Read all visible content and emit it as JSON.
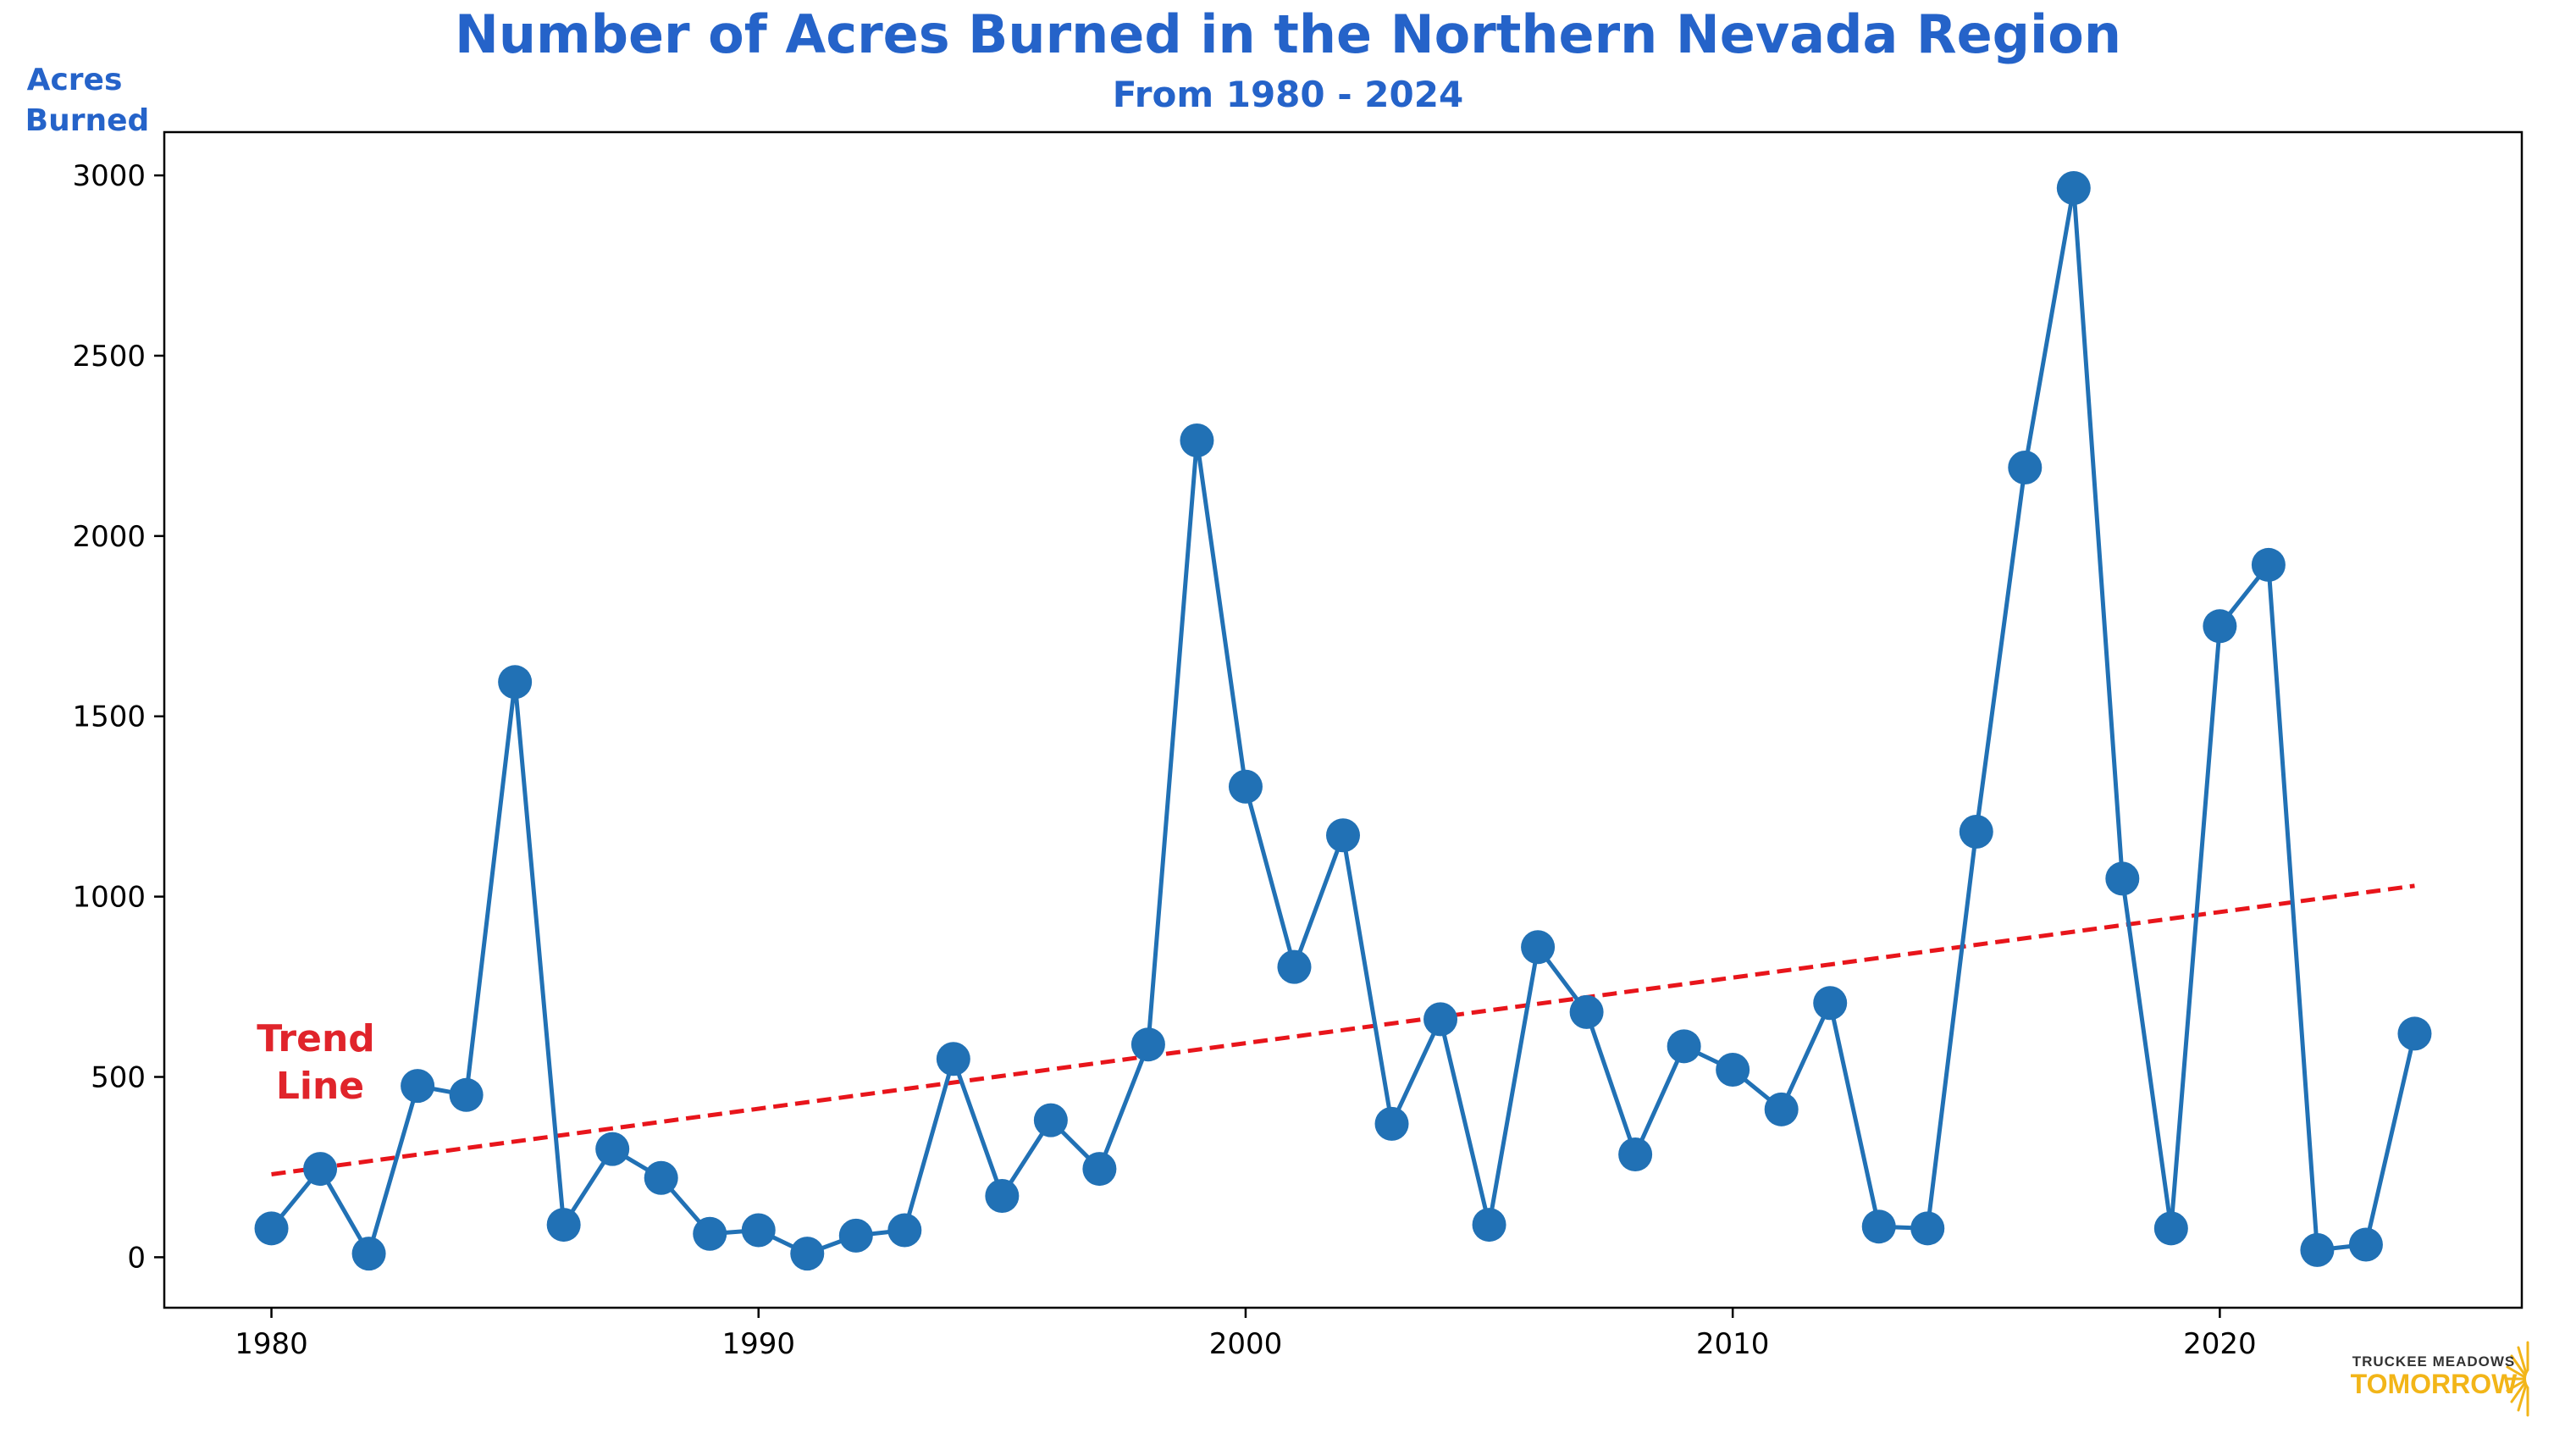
{
  "chart_data": {
    "type": "line",
    "title": "Number of Acres Burned in the Northern Nevada Region",
    "subtitle": "From 1980 - 2024",
    "ylabel_line1": "Acres",
    "ylabel_line2": "Burned",
    "xlabel": "",
    "xlim": [
      1977.8,
      2026.2
    ],
    "ylim": [
      -140,
      3120
    ],
    "xticks": [
      1980,
      1990,
      2000,
      2010,
      2020
    ],
    "yticks": [
      0,
      500,
      1000,
      1500,
      2000,
      2500,
      3000
    ],
    "grid": false,
    "x": [
      1980,
      1981,
      1982,
      1983,
      1984,
      1985,
      1986,
      1987,
      1988,
      1989,
      1990,
      1991,
      1992,
      1993,
      1994,
      1995,
      1996,
      1997,
      1998,
      1999,
      2000,
      2001,
      2002,
      2003,
      2004,
      2005,
      2006,
      2007,
      2008,
      2009,
      2010,
      2011,
      2012,
      2013,
      2014,
      2015,
      2016,
      2017,
      2018,
      2019,
      2020,
      2021,
      2022,
      2023,
      2024
    ],
    "series": [
      {
        "values": [
          80,
          245,
          10,
          475,
          450,
          1595,
          90,
          300,
          220,
          65,
          75,
          10,
          60,
          75,
          550,
          170,
          380,
          245,
          590,
          2265,
          1305,
          805,
          1170,
          370,
          660,
          90,
          860,
          680,
          285,
          585,
          520,
          410,
          705,
          85,
          80,
          1180,
          2190,
          2965,
          1050,
          80,
          1750,
          1920,
          20,
          35,
          620
        ],
        "color": "#2171b5"
      }
    ],
    "trend": {
      "x": [
        1980,
        2024
      ],
      "y": [
        230,
        1030
      ],
      "color": "#e8151b",
      "style": "dashed",
      "annotation_line1": "Trend",
      "annotation_line2": "Line",
      "annotation_color": "#e0242b"
    }
  },
  "logo": {
    "top": "TRUCKEE MEADOWS",
    "bottom": "TOMORROW"
  },
  "colors": {
    "title": "#2563c9",
    "series": "#2171b5",
    "trend": "#e8151b",
    "logo_gold": "#f2b518"
  }
}
